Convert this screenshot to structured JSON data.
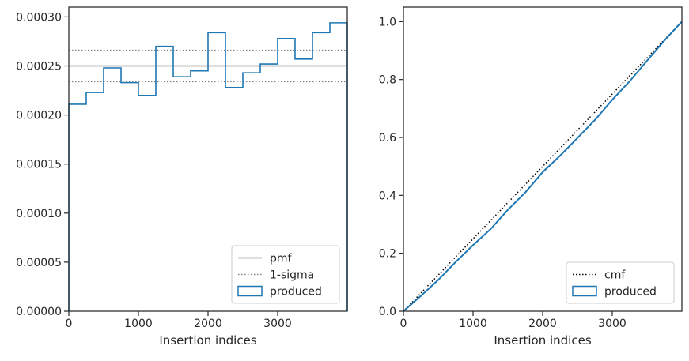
{
  "chart_data": [
    {
      "type": "line",
      "xlabel": "Insertion indices",
      "ylabel": "",
      "xlim": [
        0,
        4000
      ],
      "ylim": [
        0,
        0.00031
      ],
      "xticks": [
        0,
        1000,
        2000,
        3000
      ],
      "xtick_labels": [
        "0",
        "1000",
        "2000",
        "3000"
      ],
      "yticks": [
        0,
        5e-05,
        0.0001,
        0.00015,
        0.0002,
        0.00025,
        0.0003
      ],
      "ytick_labels": [
        "0.00000",
        "0.00005",
        "0.00010",
        "0.00015",
        "0.00020",
        "0.00025",
        "0.00030"
      ],
      "grid": false,
      "legend_position": "lower-right",
      "colors": {
        "pmf": "#808080",
        "sigma": "#808080",
        "produced": "#1f77b4"
      },
      "legend": [
        {
          "label": "pmf",
          "style": "solid"
        },
        {
          "label": "1-sigma",
          "style": "dotted"
        },
        {
          "label": "produced",
          "style": "patch"
        }
      ],
      "pmf": 0.00025,
      "sigma_band": [
        0.000234,
        0.000266
      ],
      "produced_bins": {
        "edges": [
          0,
          250,
          500,
          750,
          1000,
          1250,
          1500,
          1750,
          2000,
          2250,
          2500,
          2750,
          3000,
          3250,
          3500,
          3750,
          4000
        ],
        "values": [
          0.000211,
          0.000223,
          0.000248,
          0.000233,
          0.00022,
          0.00027,
          0.000239,
          0.000245,
          0.000284,
          0.000228,
          0.000243,
          0.000252,
          0.000278,
          0.000257,
          0.000284,
          0.000294
        ]
      }
    },
    {
      "type": "line",
      "xlabel": "Insertion indices",
      "ylabel": "",
      "xlim": [
        0,
        4000
      ],
      "ylim": [
        0,
        1.05
      ],
      "xticks": [
        0,
        1000,
        2000,
        3000
      ],
      "xtick_labels": [
        "0",
        "1000",
        "2000",
        "3000"
      ],
      "yticks": [
        0,
        0.2,
        0.4,
        0.6,
        0.8,
        1.0
      ],
      "ytick_labels": [
        "0.0",
        "0.2",
        "0.4",
        "0.6",
        "0.8",
        "1.0"
      ],
      "grid": false,
      "legend_position": "lower-right",
      "colors": {
        "cmf": "#000000",
        "produced": "#1f77b4"
      },
      "legend": [
        {
          "label": "cmf",
          "style": "dotted"
        },
        {
          "label": "produced",
          "style": "patch"
        }
      ],
      "cmf": {
        "x": [
          0,
          4000
        ],
        "y": [
          0,
          1.0
        ]
      },
      "produced": {
        "x": [
          0,
          250,
          500,
          750,
          1000,
          1250,
          1500,
          1750,
          2000,
          2250,
          2500,
          2750,
          3000,
          3250,
          3500,
          3750,
          4000
        ],
        "y": [
          0,
          0.053,
          0.108,
          0.17,
          0.228,
          0.283,
          0.35,
          0.41,
          0.48,
          0.537,
          0.598,
          0.66,
          0.73,
          0.794,
          0.865,
          0.935,
          1.0
        ]
      }
    }
  ]
}
